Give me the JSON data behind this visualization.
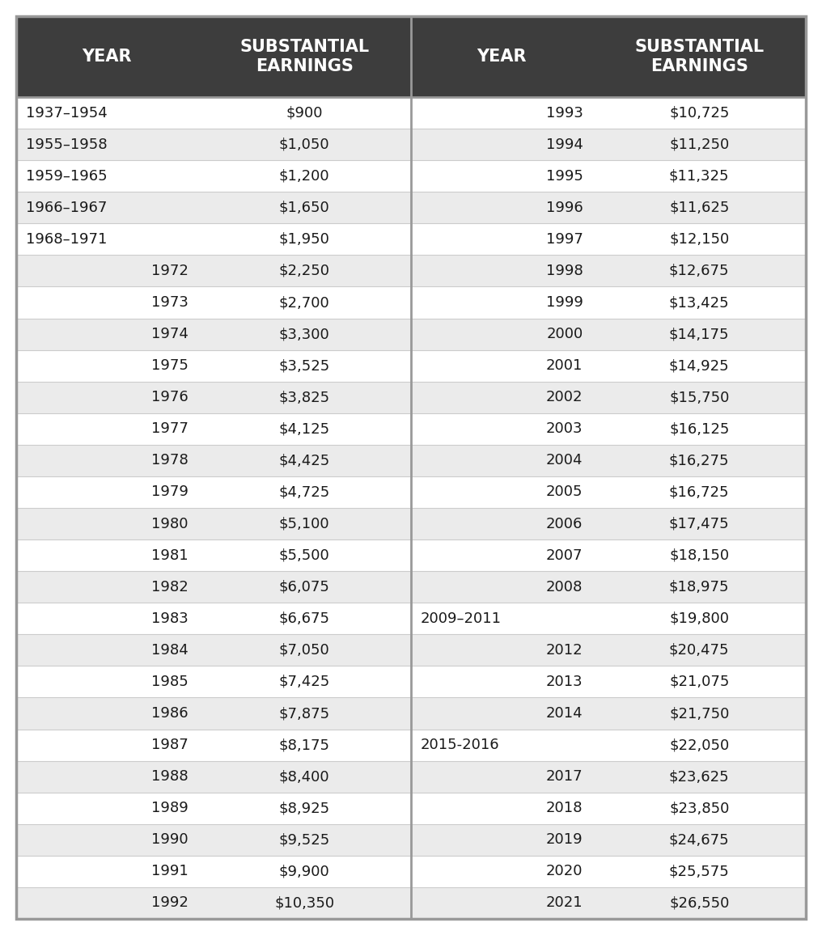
{
  "header_bg": "#3d3d3d",
  "header_text_color": "#ffffff",
  "row_colors": [
    "#ffffff",
    "#ebebeb"
  ],
  "border_color": "#999999",
  "text_color": "#1a1a1a",
  "col1_header": "YEAR",
  "col2_header": "SUBSTANTIAL\nEARNINGS",
  "col3_header": "YEAR",
  "col4_header": "SUBSTANTIAL\nEARNINGS",
  "left_data": [
    [
      "1937–1954",
      "$900"
    ],
    [
      "1955–1958",
      "$1,050"
    ],
    [
      "1959–1965",
      "$1,200"
    ],
    [
      "1966–1967",
      "$1,650"
    ],
    [
      "1968–1971",
      "$1,950"
    ],
    [
      "1972",
      "$2,250"
    ],
    [
      "1973",
      "$2,700"
    ],
    [
      "1974",
      "$3,300"
    ],
    [
      "1975",
      "$3,525"
    ],
    [
      "1976",
      "$3,825"
    ],
    [
      "1977",
      "$4,125"
    ],
    [
      "1978",
      "$4,425"
    ],
    [
      "1979",
      "$4,725"
    ],
    [
      "1980",
      "$5,100"
    ],
    [
      "1981",
      "$5,500"
    ],
    [
      "1982",
      "$6,075"
    ],
    [
      "1983",
      "$6,675"
    ],
    [
      "1984",
      "$7,050"
    ],
    [
      "1985",
      "$7,425"
    ],
    [
      "1986",
      "$7,875"
    ],
    [
      "1987",
      "$8,175"
    ],
    [
      "1988",
      "$8,400"
    ],
    [
      "1989",
      "$8,925"
    ],
    [
      "1990",
      "$9,525"
    ],
    [
      "1991",
      "$9,900"
    ],
    [
      "1992",
      "$10,350"
    ]
  ],
  "right_data": [
    [
      "1993",
      "$10,725"
    ],
    [
      "1994",
      "$11,250"
    ],
    [
      "1995",
      "$11,325"
    ],
    [
      "1996",
      "$11,625"
    ],
    [
      "1997",
      "$12,150"
    ],
    [
      "1998",
      "$12,675"
    ],
    [
      "1999",
      "$13,425"
    ],
    [
      "2000",
      "$14,175"
    ],
    [
      "2001",
      "$14,925"
    ],
    [
      "2002",
      "$15,750"
    ],
    [
      "2003",
      "$16,125"
    ],
    [
      "2004",
      "$16,275"
    ],
    [
      "2005",
      "$16,725"
    ],
    [
      "2006",
      "$17,475"
    ],
    [
      "2007",
      "$18,150"
    ],
    [
      "2008",
      "$18,975"
    ],
    [
      "2009–2011",
      "$19,800"
    ],
    [
      "2012",
      "$20,475"
    ],
    [
      "2013",
      "$21,075"
    ],
    [
      "2014",
      "$21,750"
    ],
    [
      "2015-2016",
      "$22,050"
    ],
    [
      "2017",
      "$23,625"
    ],
    [
      "2018",
      "$23,850"
    ],
    [
      "2019",
      "$24,675"
    ],
    [
      "2020",
      "$25,575"
    ],
    [
      "2021",
      "$26,550"
    ]
  ]
}
